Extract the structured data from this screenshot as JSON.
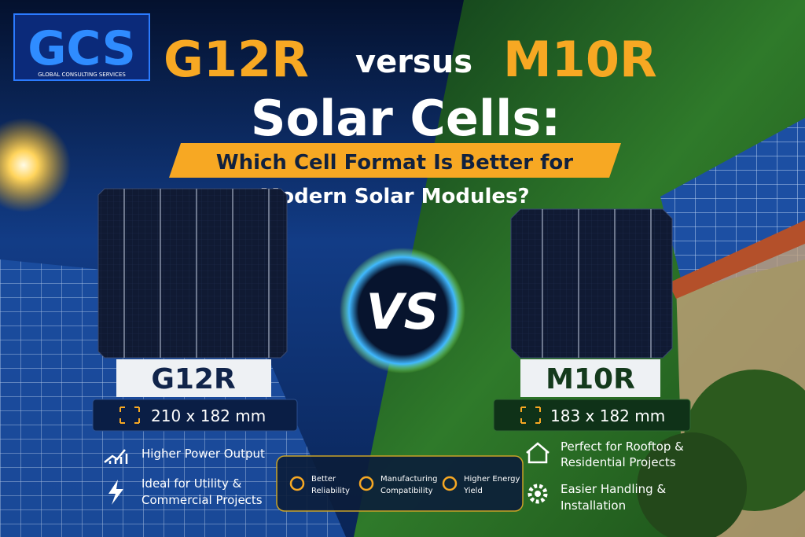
{
  "logo": {
    "mark": "GCS",
    "caption": "GLOBAL CONSULTING SERVICES"
  },
  "header": {
    "left": "G12R",
    "middle": "versus",
    "right": "M10R",
    "line2": "Solar Cells:",
    "subtitle": [
      "Which Cell Format Is Better for",
      "Modern Solar Modules?"
    ]
  },
  "vs": "VS",
  "left": {
    "name": "G12R",
    "size": "210 x 182 mm",
    "features": [
      [
        "Higher Power Output"
      ],
      [
        "Ideal for Utility &",
        "Commercial Projects"
      ]
    ]
  },
  "right": {
    "name": "M10R",
    "size": "183 x 182 mm",
    "features": [
      [
        "Perfect for Rooftop &",
        "Residential Projects"
      ],
      [
        "Easier Handling &",
        "Installation"
      ]
    ]
  },
  "shared": [
    [
      "Better",
      "Reliability"
    ],
    [
      "Manufacturing",
      "Compatibility"
    ],
    [
      "Higher Energy",
      "Yield"
    ]
  ]
}
